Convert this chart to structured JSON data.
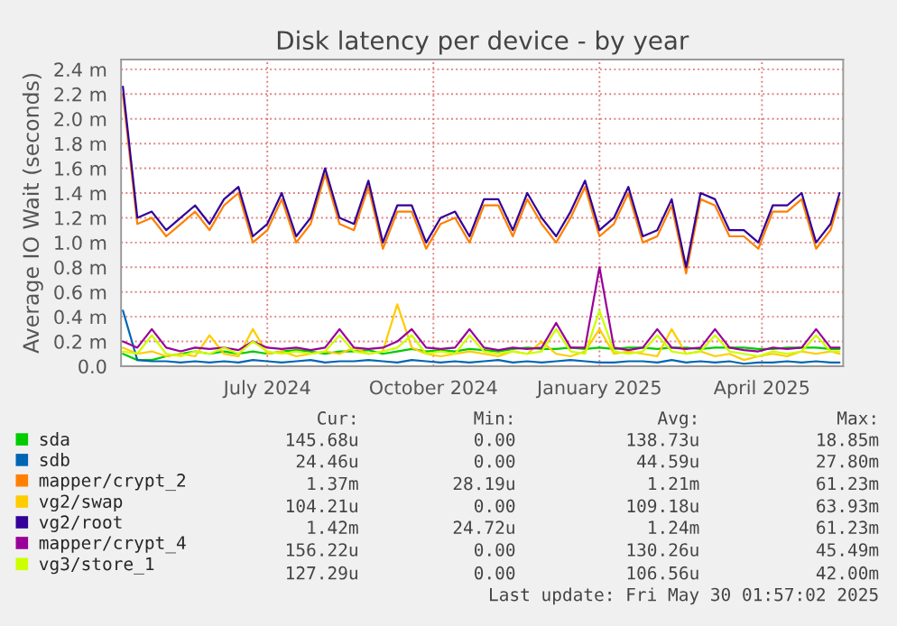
{
  "chart_data": {
    "type": "line",
    "title": "Disk latency per device - by year",
    "ylabel": "Average IO Wait (seconds)",
    "x": [
      "2024-04-27",
      "2024-05-05",
      "2024-05-13",
      "2024-05-21",
      "2024-05-29",
      "2024-06-06",
      "2024-06-14",
      "2024-06-22",
      "2024-06-30",
      "2024-07-08",
      "2024-07-16",
      "2024-07-24",
      "2024-08-01",
      "2024-08-09",
      "2024-08-17",
      "2024-08-25",
      "2024-09-02",
      "2024-09-10",
      "2024-09-18",
      "2024-09-26",
      "2024-10-04",
      "2024-10-12",
      "2024-10-20",
      "2024-10-28",
      "2024-11-05",
      "2024-11-13",
      "2024-11-21",
      "2024-11-29",
      "2024-12-07",
      "2024-12-15",
      "2024-12-23",
      "2024-12-31",
      "2025-01-08",
      "2025-01-16",
      "2025-01-24",
      "2025-02-01",
      "2025-02-09",
      "2025-02-17",
      "2025-02-25",
      "2025-03-05",
      "2025-03-13",
      "2025-03-21",
      "2025-03-29",
      "2025-04-06",
      "2025-04-14",
      "2025-04-22",
      "2025-04-30",
      "2025-05-08",
      "2025-05-16",
      "2025-05-24",
      "2025-05-29"
    ],
    "series": [
      {
        "name": "sda",
        "color": "#00cc00",
        "values": [
          0.1,
          0.05,
          0.05,
          0.08,
          0.1,
          0.12,
          0.1,
          0.12,
          0.1,
          0.12,
          0.1,
          0.12,
          0.13,
          0.12,
          0.1,
          0.12,
          0.12,
          0.13,
          0.1,
          0.12,
          0.14,
          0.12,
          0.13,
          0.12,
          0.14,
          0.13,
          0.12,
          0.14,
          0.15,
          0.14,
          0.14,
          0.15,
          0.14,
          0.15,
          0.14,
          0.15,
          0.15,
          0.14,
          0.15,
          0.15,
          0.14,
          0.15,
          0.15,
          0.15,
          0.14,
          0.14,
          0.15,
          0.15,
          0.15,
          0.14,
          0.14
        ]
      },
      {
        "name": "sdb",
        "color": "#0066b3",
        "values": [
          0.45,
          0.05,
          0.04,
          0.04,
          0.03,
          0.04,
          0.03,
          0.04,
          0.03,
          0.05,
          0.04,
          0.03,
          0.04,
          0.05,
          0.03,
          0.04,
          0.04,
          0.05,
          0.04,
          0.03,
          0.05,
          0.04,
          0.03,
          0.04,
          0.03,
          0.04,
          0.05,
          0.03,
          0.04,
          0.03,
          0.04,
          0.05,
          0.04,
          0.03,
          0.03,
          0.04,
          0.04,
          0.03,
          0.05,
          0.03,
          0.04,
          0.03,
          0.04,
          0.02,
          0.03,
          0.03,
          0.04,
          0.03,
          0.04,
          0.03,
          0.03
        ]
      },
      {
        "name": "mapper/crypt_2",
        "color": "#ff8000",
        "values": [
          2.2,
          1.15,
          1.2,
          1.05,
          1.15,
          1.25,
          1.1,
          1.3,
          1.4,
          1.0,
          1.1,
          1.35,
          1.0,
          1.15,
          1.55,
          1.15,
          1.1,
          1.45,
          0.95,
          1.25,
          1.25,
          0.95,
          1.15,
          1.2,
          1.0,
          1.3,
          1.3,
          1.05,
          1.35,
          1.15,
          1.0,
          1.2,
          1.45,
          1.05,
          1.15,
          1.4,
          1.0,
          1.05,
          1.3,
          0.75,
          1.35,
          1.3,
          1.05,
          1.05,
          0.95,
          1.25,
          1.25,
          1.35,
          0.95,
          1.1,
          1.35
        ]
      },
      {
        "name": "vg2/swap",
        "color": "#ffcc00",
        "values": [
          0.15,
          0.1,
          0.12,
          0.08,
          0.1,
          0.08,
          0.25,
          0.1,
          0.08,
          0.3,
          0.1,
          0.12,
          0.08,
          0.1,
          0.12,
          0.1,
          0.15,
          0.1,
          0.12,
          0.5,
          0.15,
          0.1,
          0.08,
          0.1,
          0.12,
          0.1,
          0.08,
          0.12,
          0.1,
          0.2,
          0.1,
          0.08,
          0.12,
          0.3,
          0.1,
          0.12,
          0.1,
          0.08,
          0.3,
          0.1,
          0.12,
          0.08,
          0.1,
          0.05,
          0.08,
          0.1,
          0.08,
          0.12,
          0.1,
          0.12,
          0.1
        ]
      },
      {
        "name": "vg2/root",
        "color": "#330099",
        "values": [
          2.26,
          1.2,
          1.25,
          1.1,
          1.2,
          1.3,
          1.15,
          1.35,
          1.45,
          1.05,
          1.15,
          1.4,
          1.05,
          1.2,
          1.6,
          1.2,
          1.15,
          1.5,
          1.0,
          1.3,
          1.3,
          1.0,
          1.2,
          1.25,
          1.05,
          1.35,
          1.35,
          1.1,
          1.4,
          1.2,
          1.05,
          1.25,
          1.5,
          1.1,
          1.2,
          1.45,
          1.05,
          1.1,
          1.35,
          0.8,
          1.4,
          1.35,
          1.1,
          1.1,
          1.0,
          1.3,
          1.3,
          1.4,
          1.0,
          1.15,
          1.4
        ]
      },
      {
        "name": "mapper/crypt_4",
        "color": "#990099",
        "values": [
          0.2,
          0.15,
          0.3,
          0.15,
          0.12,
          0.15,
          0.14,
          0.15,
          0.13,
          0.2,
          0.15,
          0.14,
          0.15,
          0.13,
          0.15,
          0.3,
          0.15,
          0.14,
          0.15,
          0.2,
          0.3,
          0.15,
          0.14,
          0.15,
          0.3,
          0.15,
          0.13,
          0.15,
          0.14,
          0.15,
          0.35,
          0.15,
          0.15,
          0.8,
          0.15,
          0.13,
          0.15,
          0.3,
          0.15,
          0.14,
          0.15,
          0.3,
          0.15,
          0.13,
          0.12,
          0.15,
          0.14,
          0.15,
          0.3,
          0.15,
          0.15
        ]
      },
      {
        "name": "vg3/store_1",
        "color": "#ccff00",
        "values": [
          0.12,
          0.1,
          0.25,
          0.1,
          0.08,
          0.12,
          0.1,
          0.15,
          0.1,
          0.2,
          0.12,
          0.1,
          0.12,
          0.1,
          0.12,
          0.25,
          0.12,
          0.1,
          0.12,
          0.15,
          0.25,
          0.1,
          0.12,
          0.1,
          0.25,
          0.12,
          0.1,
          0.12,
          0.1,
          0.12,
          0.3,
          0.12,
          0.1,
          0.45,
          0.12,
          0.1,
          0.12,
          0.25,
          0.12,
          0.1,
          0.12,
          0.25,
          0.12,
          0.1,
          0.08,
          0.12,
          0.1,
          0.12,
          0.25,
          0.12,
          0.12
        ]
      }
    ],
    "xlim": [
      "2024-04-26",
      "2025-05-31"
    ],
    "xticks": [
      {
        "value": "2024-07-16",
        "label": "July 2024"
      },
      {
        "value": "2024-10-16",
        "label": "October 2024"
      },
      {
        "value": "2025-01-16",
        "label": "January 2025"
      },
      {
        "value": "2025-04-16",
        "label": "April 2025"
      }
    ],
    "ylim": [
      0,
      2.48
    ],
    "yticks": [
      {
        "value": 0,
        "label": "0.0"
      },
      {
        "value": 0.2,
        "label": "0.2 m"
      },
      {
        "value": 0.4,
        "label": "0.4 m"
      },
      {
        "value": 0.6,
        "label": "0.6 m"
      },
      {
        "value": 0.8,
        "label": "0.8 m"
      },
      {
        "value": 1.0,
        "label": "1.0 m"
      },
      {
        "value": 1.2,
        "label": "1.2 m"
      },
      {
        "value": 1.4,
        "label": "1.4 m"
      },
      {
        "value": 1.6,
        "label": "1.6 m"
      },
      {
        "value": 1.8,
        "label": "1.8 m"
      },
      {
        "value": 2.0,
        "label": "2.0 m"
      },
      {
        "value": 2.2,
        "label": "2.2 m"
      },
      {
        "value": 2.4,
        "label": "2.4 m"
      }
    ],
    "grid": true,
    "legend": "bottom",
    "marker": "none",
    "line_style": "solid",
    "annotations": [
      "Cur:",
      "Min:",
      "Avg:",
      "Max:",
      "145.68u",
      "0.00",
      "138.73u",
      "18.85m",
      "24.46u",
      "0.00",
      "44.59u",
      "27.80m",
      "1.37m",
      "28.19u",
      "1.21m",
      "61.23m",
      "104.21u",
      "0.00",
      "109.18u",
      "63.93m",
      "1.42m",
      "24.72u",
      "1.24m",
      "61.23m",
      "156.22u",
      "0.00",
      "130.26u",
      "45.49m",
      "127.29u",
      "0.00",
      "106.56u",
      "42.00m",
      "Last update: Fri May 30 01:57:02 2025"
    ]
  }
}
